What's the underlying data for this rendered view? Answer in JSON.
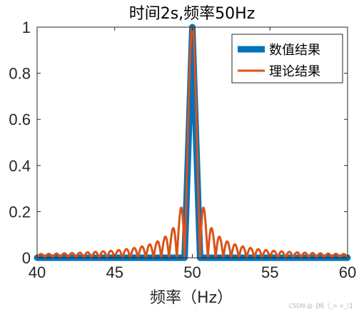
{
  "chart_data": {
    "type": "line",
    "title": "时间2s,频率50Hz",
    "xlabel": "频率（Hz）",
    "ylabel": "",
    "xlim": [
      40,
      60
    ],
    "ylim": [
      0,
      1
    ],
    "x_ticks": [
      40,
      45,
      50,
      55,
      60
    ],
    "x_tick_labels": [
      "40",
      "45",
      "50",
      "55",
      "60"
    ],
    "y_ticks": [
      0,
      0.2,
      0.4,
      0.6,
      0.8,
      1
    ],
    "y_tick_labels": [
      "0",
      "0.2",
      "0.4",
      "0.6",
      "0.8",
      "1"
    ],
    "grid": false,
    "legend_position": "top-right",
    "series": [
      {
        "name": "数值结果",
        "color": "#0072BD",
        "style": "thick line",
        "model": "abs(sinc(2*(f-50)))",
        "x_range": [
          40,
          60
        ],
        "x_step": 0.5,
        "peak": {
          "x": 50,
          "y": 1
        },
        "first_sidelobe": {
          "x": 50.75,
          "y": 0.21
        }
      },
      {
        "name": "理论结果",
        "color": "#D95319",
        "style": "thin line",
        "model": "abs(sinc(2*(f-50)))",
        "x_range": [
          40,
          60
        ],
        "x_step": 0.01,
        "peak": {
          "x": 50,
          "y": 1
        },
        "first_sidelobe": {
          "x": 50.75,
          "y": 0.21
        }
      }
    ]
  },
  "watermark": "CSDN @【杨（_> <_）】"
}
